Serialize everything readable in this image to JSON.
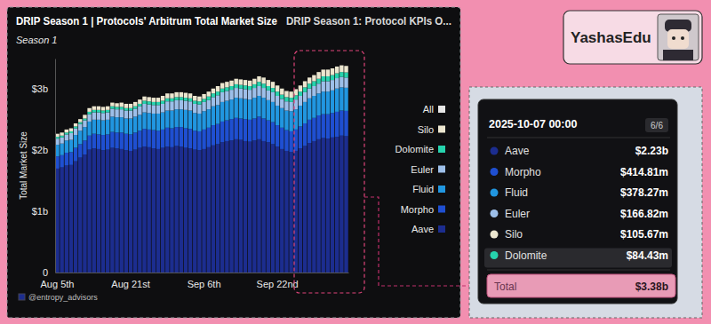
{
  "chart_data": {
    "type": "bar",
    "title": "DRIP Season 1 | Protocols' Arbitrum Total Market Size",
    "subtitle": "Season 1",
    "y_label": "Total Market Size",
    "legend_title": "All",
    "annotations": [
      "DRIP Season 1: Protocol KPIs O...",
      "@entropy_advisors"
    ],
    "stacked": true,
    "grid": false,
    "legend": "right",
    "categories": [
      "Aug 5th",
      null,
      null,
      null,
      null,
      null,
      null,
      null,
      null,
      null,
      null,
      null,
      null,
      null,
      null,
      null,
      "Aug 21st",
      null,
      null,
      null,
      null,
      null,
      null,
      null,
      null,
      null,
      null,
      null,
      null,
      null,
      null,
      null,
      "Sep 6th",
      null,
      null,
      null,
      null,
      null,
      null,
      null,
      null,
      null,
      null,
      null,
      null,
      null,
      null,
      null,
      "Sep 22nd",
      null,
      null,
      null,
      null,
      null,
      null,
      null,
      null,
      null,
      null,
      null,
      null,
      null,
      null,
      null
    ],
    "ylim": [
      0,
      3.5
    ],
    "yticks": [
      0,
      {
        "value": 1,
        "label": "$1b"
      },
      {
        "value": 2,
        "label": "$2b"
      },
      {
        "value": 3,
        "label": "$3b"
      }
    ],
    "series": [
      {
        "name": "Aave",
        "color": "#1c2d8f",
        "values": [
          1.7,
          1.72,
          1.75,
          1.76,
          1.82,
          1.88,
          1.93,
          2.01,
          2.03,
          2.02,
          2.0,
          2.01,
          2.04,
          2.03,
          2.02,
          2.0,
          1.99,
          2.01,
          2.04,
          2.06,
          2.05,
          2.03,
          2.02,
          2.04,
          2.06,
          2.05,
          2.07,
          2.06,
          2.04,
          2.03,
          2.01,
          2.0,
          2.02,
          2.05,
          2.08,
          2.1,
          2.13,
          2.15,
          2.16,
          2.18,
          2.17,
          2.15,
          2.14,
          2.16,
          2.18,
          2.15,
          2.13,
          2.1,
          2.06,
          2.02,
          1.99,
          1.97,
          1.99,
          2.03,
          2.07,
          2.12,
          2.15,
          2.18,
          2.2,
          2.19,
          2.21,
          2.22,
          2.24,
          2.23
        ]
      },
      {
        "name": "Morpho",
        "color": "#1f4fd1",
        "values": [
          0.2,
          0.2,
          0.21,
          0.21,
          0.22,
          0.22,
          0.23,
          0.23,
          0.24,
          0.24,
          0.25,
          0.25,
          0.26,
          0.26,
          0.27,
          0.27,
          0.27,
          0.28,
          0.28,
          0.29,
          0.29,
          0.3,
          0.3,
          0.3,
          0.31,
          0.31,
          0.31,
          0.32,
          0.32,
          0.32,
          0.31,
          0.31,
          0.32,
          0.32,
          0.33,
          0.33,
          0.34,
          0.34,
          0.35,
          0.35,
          0.35,
          0.36,
          0.36,
          0.36,
          0.37,
          0.37,
          0.36,
          0.36,
          0.35,
          0.35,
          0.34,
          0.34,
          0.35,
          0.36,
          0.37,
          0.38,
          0.38,
          0.39,
          0.39,
          0.4,
          0.4,
          0.41,
          0.41,
          0.41481
        ]
      },
      {
        "name": "Fluid",
        "color": "#2196e0",
        "values": [
          0.19,
          0.19,
          0.2,
          0.2,
          0.21,
          0.22,
          0.22,
          0.23,
          0.23,
          0.24,
          0.24,
          0.24,
          0.25,
          0.25,
          0.25,
          0.25,
          0.26,
          0.26,
          0.26,
          0.27,
          0.27,
          0.27,
          0.28,
          0.28,
          0.28,
          0.29,
          0.29,
          0.29,
          0.3,
          0.3,
          0.29,
          0.29,
          0.3,
          0.3,
          0.31,
          0.31,
          0.32,
          0.32,
          0.32,
          0.33,
          0.33,
          0.33,
          0.33,
          0.34,
          0.34,
          0.34,
          0.33,
          0.33,
          0.32,
          0.32,
          0.32,
          0.33,
          0.33,
          0.34,
          0.35,
          0.35,
          0.36,
          0.36,
          0.37,
          0.37,
          0.37,
          0.38,
          0.38,
          0.37827
        ]
      },
      {
        "name": "Euler",
        "color": "#9dbfe9",
        "values": [
          0.1,
          0.1,
          0.1,
          0.11,
          0.11,
          0.11,
          0.11,
          0.12,
          0.12,
          0.12,
          0.12,
          0.12,
          0.13,
          0.13,
          0.13,
          0.13,
          0.13,
          0.13,
          0.14,
          0.14,
          0.14,
          0.14,
          0.14,
          0.14,
          0.15,
          0.15,
          0.15,
          0.15,
          0.15,
          0.15,
          0.15,
          0.15,
          0.15,
          0.15,
          0.15,
          0.16,
          0.16,
          0.16,
          0.16,
          0.16,
          0.16,
          0.16,
          0.16,
          0.16,
          0.16,
          0.16,
          0.16,
          0.16,
          0.16,
          0.15,
          0.15,
          0.15,
          0.16,
          0.16,
          0.16,
          0.16,
          0.16,
          0.16,
          0.17,
          0.17,
          0.17,
          0.17,
          0.17,
          0.16682
        ]
      },
      {
        "name": "Dolomite",
        "color": "#26d3ad",
        "values": [
          0.03,
          0.03,
          0.03,
          0.03,
          0.03,
          0.03,
          0.03,
          0.04,
          0.04,
          0.04,
          0.04,
          0.04,
          0.04,
          0.04,
          0.04,
          0.04,
          0.04,
          0.04,
          0.04,
          0.05,
          0.05,
          0.05,
          0.05,
          0.05,
          0.05,
          0.05,
          0.05,
          0.05,
          0.05,
          0.05,
          0.05,
          0.05,
          0.05,
          0.06,
          0.06,
          0.06,
          0.06,
          0.06,
          0.06,
          0.06,
          0.06,
          0.06,
          0.06,
          0.06,
          0.07,
          0.07,
          0.07,
          0.07,
          0.07,
          0.07,
          0.07,
          0.07,
          0.07,
          0.07,
          0.08,
          0.08,
          0.08,
          0.08,
          0.08,
          0.08,
          0.08,
          0.08,
          0.08,
          0.08443
        ]
      },
      {
        "name": "Silo",
        "color": "#ece6cf",
        "values": [
          0.05,
          0.05,
          0.05,
          0.05,
          0.05,
          0.05,
          0.06,
          0.06,
          0.06,
          0.06,
          0.06,
          0.06,
          0.06,
          0.06,
          0.07,
          0.07,
          0.07,
          0.07,
          0.07,
          0.07,
          0.07,
          0.07,
          0.07,
          0.08,
          0.08,
          0.08,
          0.08,
          0.08,
          0.08,
          0.08,
          0.08,
          0.08,
          0.08,
          0.08,
          0.08,
          0.09,
          0.09,
          0.09,
          0.09,
          0.09,
          0.09,
          0.09,
          0.09,
          0.09,
          0.09,
          0.1,
          0.1,
          0.1,
          0.1,
          0.1,
          0.1,
          0.1,
          0.1,
          0.1,
          0.1,
          0.1,
          0.1,
          0.11,
          0.11,
          0.11,
          0.11,
          0.11,
          0.11,
          0.10567
        ]
      }
    ]
  },
  "tooltip": {
    "date": "2025-10-07 00:00",
    "count": "6/6",
    "rows": [
      {
        "name": "Aave",
        "value": "$2.23b",
        "color": "#1c2d8f"
      },
      {
        "name": "Morpho",
        "value": "$414.81m",
        "color": "#1f4fd1"
      },
      {
        "name": "Fluid",
        "value": "$378.27m",
        "color": "#2196e0"
      },
      {
        "name": "Euler",
        "value": "$166.82m",
        "color": "#9dbfe9"
      },
      {
        "name": "Silo",
        "value": "$105.67m",
        "color": "#ece6cf"
      },
      {
        "name": "Dolomite",
        "value": "$84.43m",
        "color": "#26d3ad"
      }
    ],
    "total_label": "Total",
    "total": "$3.38b"
  },
  "badge": {
    "text": "YashasEdu"
  }
}
